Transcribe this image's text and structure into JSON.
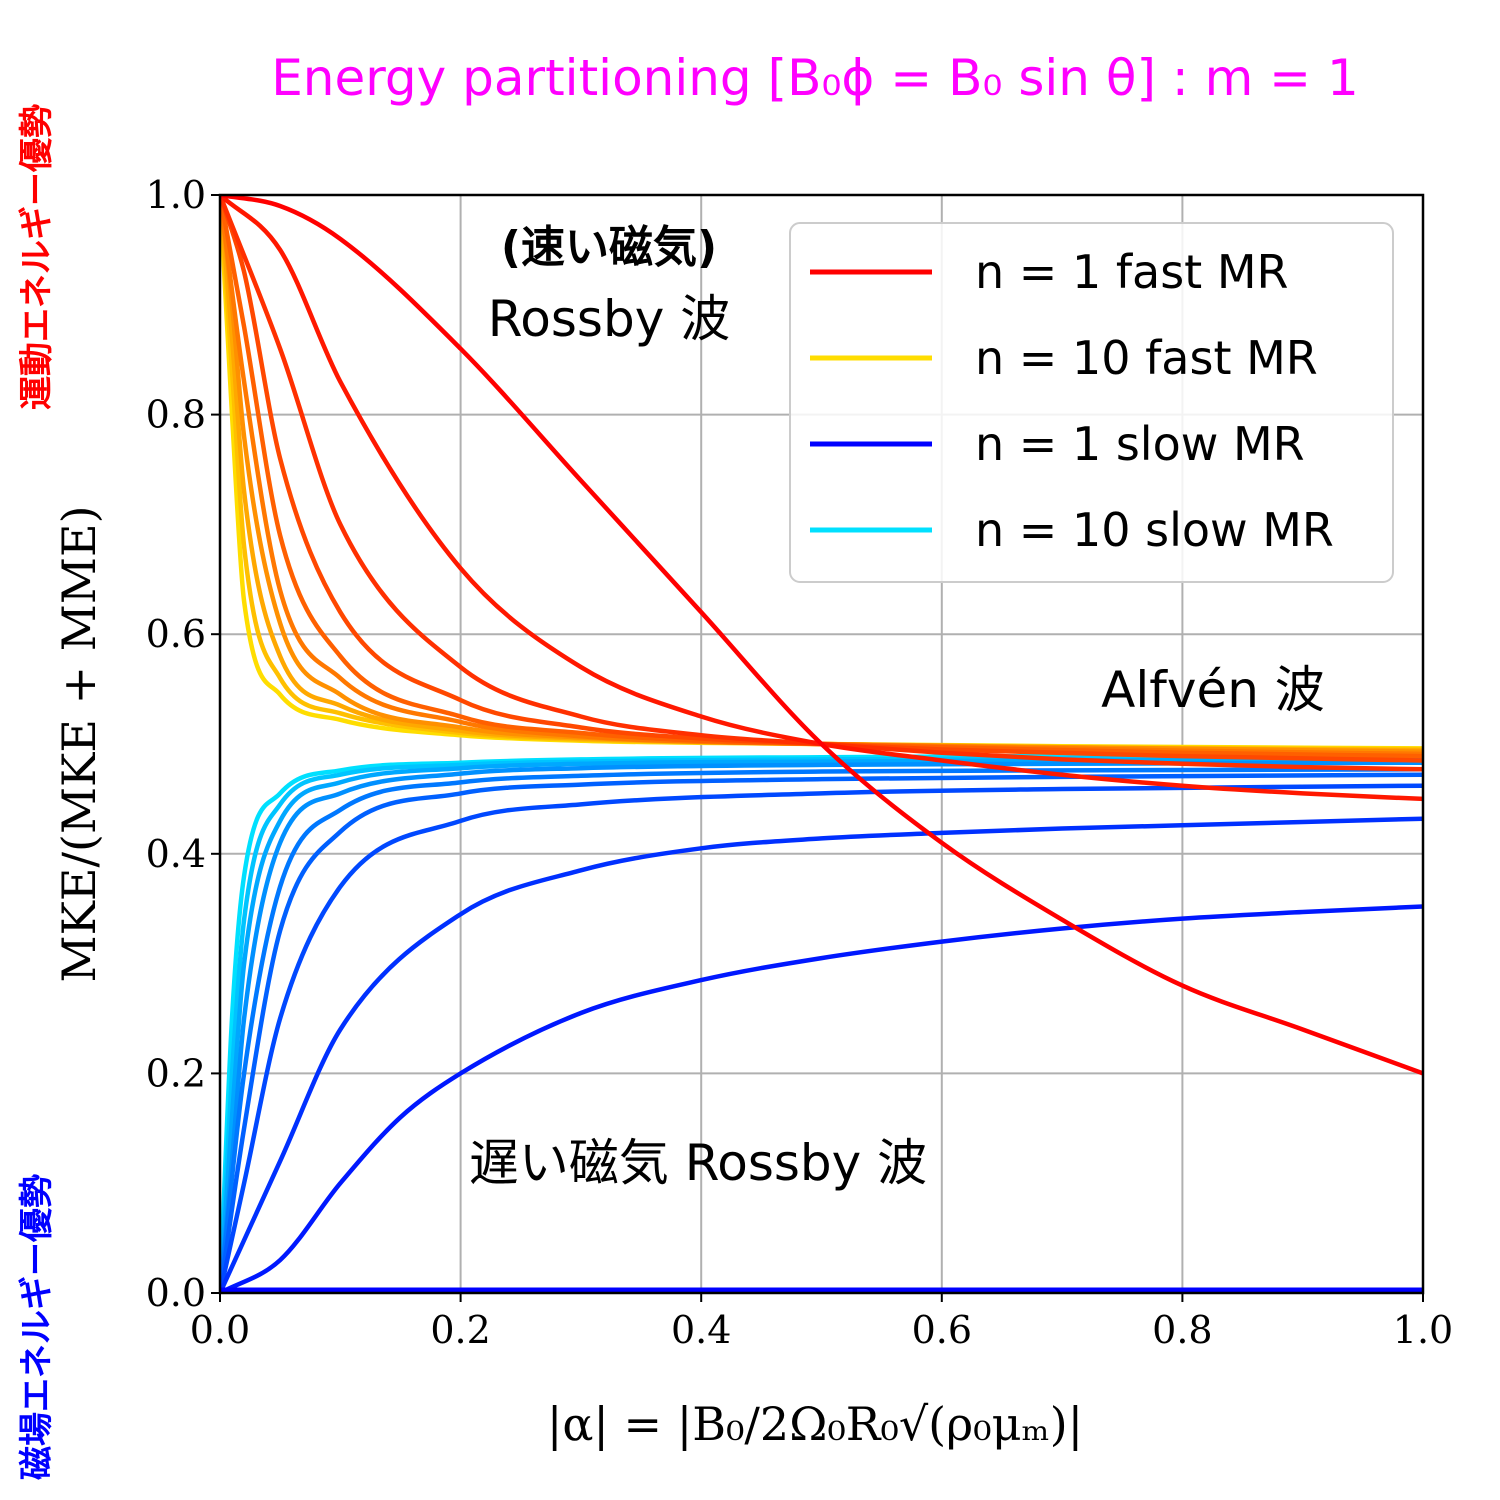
{
  "title": "Energy partitioning [B₀ϕ = B₀ sin θ] : m = 1",
  "side_labels": {
    "kinetic_dominant": "運動エネルギー優勢",
    "magnetic_dominant": "磁場エネルギー優勢"
  },
  "annotations": {
    "fast_rossby_line1": "(速い磁気)",
    "fast_rossby_line2": "Rossby 波",
    "alfven": "Alfvén 波",
    "slow_rossby": "遅い磁気 Rossby 波"
  },
  "colors": {
    "title": "#ff00ff",
    "kinetic_label": "#ff0000",
    "magnetic_label": "#0000ff",
    "fast_n1": "#ff0000",
    "fast_n10": "#ffdd00",
    "slow_n1": "#0000ff",
    "slow_n10": "#00e0ff",
    "grid": "#b0b0b0"
  },
  "chart_data": {
    "type": "line",
    "xlabel": "|α| = |B₀/2Ω₀R₀√(ρ₀μₘ)|",
    "ylabel": "MKE/(MKE + MME)",
    "xlim": [
      0,
      1
    ],
    "ylim": [
      0,
      1
    ],
    "xticks": [
      "0.0",
      "0.2",
      "0.4",
      "0.6",
      "0.8",
      "1.0"
    ],
    "yticks": [
      "0.0",
      "0.2",
      "0.4",
      "0.6",
      "0.8",
      "1.0"
    ],
    "grid": true,
    "legend_position": "top-right",
    "legend": [
      {
        "label": "n = 1 fast MR",
        "color": "#ff0000"
      },
      {
        "label": "n = 10 fast MR",
        "color": "#ffdd00"
      },
      {
        "label": "n = 1 slow MR",
        "color": "#0000ff"
      },
      {
        "label": "n = 10 slow MR",
        "color": "#00e0ff"
      }
    ],
    "series": [
      {
        "name": "n = 1 fast MR",
        "family": "fast",
        "n": 1,
        "color": "#ff0000",
        "x": [
          0,
          0.05,
          0.1,
          0.2,
          0.3,
          0.4,
          0.5,
          0.6,
          0.7,
          0.8,
          0.9,
          1.0
        ],
        "y": [
          1.0,
          0.99,
          0.96,
          0.86,
          0.74,
          0.62,
          0.5,
          0.41,
          0.34,
          0.28,
          0.24,
          0.2
        ]
      },
      {
        "family": "fast",
        "n": 2,
        "color": "#ff1800",
        "x": [
          0,
          0.05,
          0.1,
          0.2,
          0.3,
          0.4,
          0.5,
          0.6,
          0.7,
          0.8,
          0.9,
          1.0
        ],
        "y": [
          1.0,
          0.95,
          0.83,
          0.66,
          0.57,
          0.525,
          0.5,
          0.485,
          0.472,
          0.462,
          0.455,
          0.45
        ]
      },
      {
        "family": "fast",
        "n": 3,
        "color": "#ff3000",
        "x": [
          0,
          0.05,
          0.1,
          0.2,
          0.3,
          0.4,
          0.5,
          0.6,
          0.7,
          0.8,
          0.9,
          1.0
        ],
        "y": [
          1.0,
          0.86,
          0.7,
          0.57,
          0.525,
          0.508,
          0.5,
          0.492,
          0.486,
          0.482,
          0.479,
          0.477
        ]
      },
      {
        "family": "fast",
        "n": 4,
        "color": "#ff4800",
        "x": [
          0,
          0.02,
          0.05,
          0.1,
          0.2,
          0.3,
          0.4,
          0.5,
          0.6,
          0.8,
          1.0
        ],
        "y": [
          1.0,
          0.93,
          0.76,
          0.62,
          0.54,
          0.515,
          0.505,
          0.5,
          0.495,
          0.489,
          0.485
        ]
      },
      {
        "family": "fast",
        "n": 5,
        "color": "#ff6000",
        "x": [
          0,
          0.02,
          0.05,
          0.1,
          0.2,
          0.3,
          0.4,
          0.5,
          0.6,
          0.8,
          1.0
        ],
        "y": [
          1.0,
          0.88,
          0.69,
          0.58,
          0.525,
          0.51,
          0.503,
          0.5,
          0.497,
          0.492,
          0.489
        ]
      },
      {
        "family": "fast",
        "n": 6,
        "color": "#ff7800",
        "x": [
          0,
          0.02,
          0.05,
          0.1,
          0.2,
          0.3,
          0.4,
          0.5,
          0.6,
          0.8,
          1.0
        ],
        "y": [
          1.0,
          0.83,
          0.64,
          0.56,
          0.52,
          0.507,
          0.502,
          0.5,
          0.498,
          0.494,
          0.491
        ]
      },
      {
        "family": "fast",
        "n": 7,
        "color": "#ff9000",
        "x": [
          0,
          0.01,
          0.02,
          0.05,
          0.1,
          0.2,
          0.3,
          0.5,
          0.7,
          1.0
        ],
        "y": [
          1.0,
          0.9,
          0.78,
          0.61,
          0.545,
          0.515,
          0.506,
          0.5,
          0.497,
          0.493
        ]
      },
      {
        "family": "fast",
        "n": 8,
        "color": "#ffa800",
        "x": [
          0,
          0.01,
          0.02,
          0.05,
          0.1,
          0.2,
          0.3,
          0.5,
          0.7,
          1.0
        ],
        "y": [
          1.0,
          0.87,
          0.73,
          0.58,
          0.535,
          0.512,
          0.505,
          0.5,
          0.497,
          0.494
        ]
      },
      {
        "family": "fast",
        "n": 9,
        "color": "#ffc000",
        "x": [
          0,
          0.01,
          0.02,
          0.05,
          0.1,
          0.2,
          0.3,
          0.5,
          0.7,
          1.0
        ],
        "y": [
          1.0,
          0.84,
          0.68,
          0.56,
          0.528,
          0.51,
          0.504,
          0.5,
          0.497,
          0.495
        ]
      },
      {
        "name": "n = 10 fast MR",
        "family": "fast",
        "n": 10,
        "color": "#ffdd00",
        "x": [
          0,
          0.01,
          0.02,
          0.05,
          0.1,
          0.2,
          0.3,
          0.5,
          0.7,
          1.0
        ],
        "y": [
          1.0,
          0.8,
          0.63,
          0.545,
          0.522,
          0.508,
          0.503,
          0.5,
          0.498,
          0.496
        ]
      },
      {
        "name": "n = 1 slow MR",
        "family": "slow",
        "n": 1,
        "color": "#0000ff",
        "x": [
          0,
          0.5,
          1.0
        ],
        "y": [
          0.003,
          0.003,
          0.003
        ]
      },
      {
        "family": "slow",
        "n": 2,
        "color": "#0018ff",
        "x": [
          0,
          0.05,
          0.1,
          0.15,
          0.2,
          0.3,
          0.4,
          0.5,
          0.6,
          0.7,
          0.8,
          0.9,
          1.0
        ],
        "y": [
          0.0,
          0.03,
          0.1,
          0.16,
          0.2,
          0.255,
          0.285,
          0.305,
          0.32,
          0.332,
          0.341,
          0.347,
          0.352
        ]
      },
      {
        "family": "slow",
        "n": 3,
        "color": "#0030ff",
        "x": [
          0,
          0.05,
          0.1,
          0.2,
          0.3,
          0.4,
          0.5,
          0.6,
          0.7,
          0.8,
          1.0
        ],
        "y": [
          0.0,
          0.12,
          0.24,
          0.345,
          0.385,
          0.405,
          0.414,
          0.419,
          0.423,
          0.426,
          0.432
        ]
      },
      {
        "family": "slow",
        "n": 4,
        "color": "#0048ff",
        "x": [
          0,
          0.02,
          0.05,
          0.1,
          0.2,
          0.3,
          0.5,
          0.7,
          1.0
        ],
        "y": [
          0.0,
          0.1,
          0.25,
          0.37,
          0.43,
          0.445,
          0.455,
          0.459,
          0.462
        ]
      },
      {
        "family": "slow",
        "n": 5,
        "color": "#0060ff",
        "x": [
          0,
          0.02,
          0.05,
          0.1,
          0.2,
          0.3,
          0.5,
          0.7,
          1.0
        ],
        "y": [
          0.0,
          0.15,
          0.33,
          0.42,
          0.455,
          0.463,
          0.468,
          0.47,
          0.472
        ]
      },
      {
        "family": "slow",
        "n": 6,
        "color": "#0078ff",
        "x": [
          0,
          0.02,
          0.05,
          0.1,
          0.2,
          0.3,
          0.5,
          0.7,
          1.0
        ],
        "y": [
          0.0,
          0.2,
          0.37,
          0.44,
          0.465,
          0.471,
          0.475,
          0.476,
          0.477
        ]
      },
      {
        "family": "slow",
        "n": 7,
        "color": "#0090ff",
        "x": [
          0,
          0.01,
          0.02,
          0.05,
          0.1,
          0.2,
          0.3,
          0.5,
          0.7,
          1.0
        ],
        "y": [
          0.0,
          0.12,
          0.25,
          0.41,
          0.455,
          0.473,
          0.478,
          0.481,
          0.482,
          0.483
        ]
      },
      {
        "family": "slow",
        "n": 8,
        "color": "#00a8ff",
        "x": [
          0,
          0.01,
          0.02,
          0.05,
          0.1,
          0.2,
          0.3,
          0.5,
          0.7,
          1.0
        ],
        "y": [
          0.0,
          0.16,
          0.3,
          0.43,
          0.465,
          0.478,
          0.482,
          0.484,
          0.485,
          0.486
        ]
      },
      {
        "family": "slow",
        "n": 9,
        "color": "#00c4ff",
        "x": [
          0,
          0.01,
          0.02,
          0.05,
          0.1,
          0.2,
          0.3,
          0.5,
          0.7,
          1.0
        ],
        "y": [
          0.0,
          0.2,
          0.34,
          0.445,
          0.472,
          0.481,
          0.484,
          0.486,
          0.487,
          0.488
        ]
      },
      {
        "name": "n = 10 slow MR",
        "family": "slow",
        "n": 10,
        "color": "#00e0ff",
        "x": [
          0,
          0.01,
          0.02,
          0.05,
          0.1,
          0.2,
          0.3,
          0.5,
          0.7,
          1.0
        ],
        "y": [
          0.0,
          0.25,
          0.38,
          0.455,
          0.476,
          0.483,
          0.486,
          0.488,
          0.489,
          0.49
        ]
      }
    ]
  }
}
